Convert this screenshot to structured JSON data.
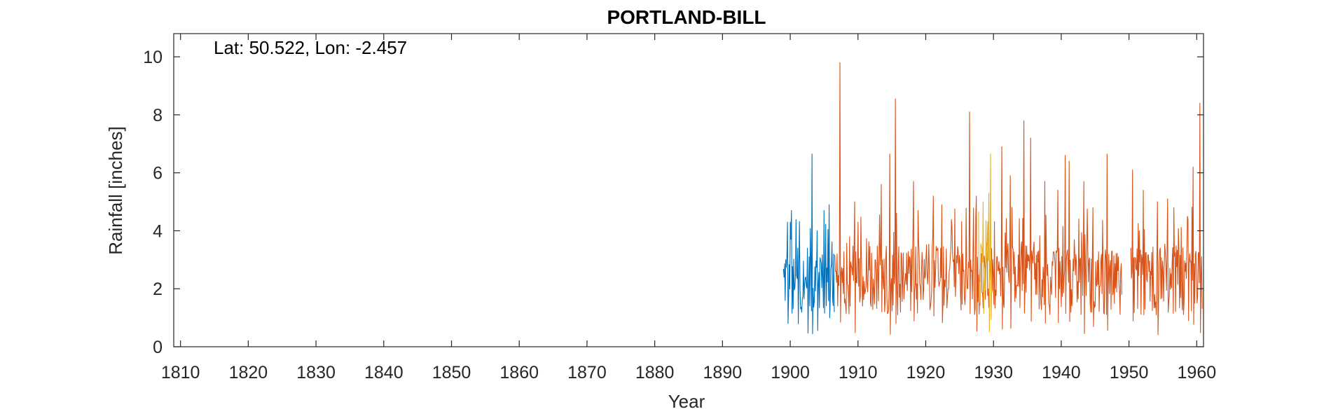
{
  "chart_data": {
    "type": "line",
    "title": "PORTLAND-BILL",
    "xlabel": "Year",
    "ylabel": "Rainfall [inches]",
    "annotation": "Lat: 50.522, Lon: -2.457",
    "xlim": [
      1809,
      1961
    ],
    "ylim": [
      0,
      10.8
    ],
    "xticks": [
      1810,
      1820,
      1830,
      1840,
      1850,
      1860,
      1870,
      1880,
      1890,
      1900,
      1910,
      1920,
      1930,
      1940,
      1950,
      1960
    ],
    "yticks": [
      0,
      2,
      4,
      6,
      8,
      10
    ],
    "grid": false,
    "box": true,
    "series": [
      {
        "color": "#0072BD",
        "x_start": 1899.0,
        "x_end": 1906.5,
        "samples": 90,
        "baseline": 2.1,
        "variability": 1.0,
        "peaks": [
          [
            1899.6,
            4.3
          ],
          [
            1900.2,
            4.7
          ],
          [
            1901.1,
            3.4
          ],
          [
            1902.5,
            3.4
          ],
          [
            1903.2,
            6.65
          ],
          [
            1904.0,
            4.0
          ],
          [
            1905.0,
            4.7
          ],
          [
            1905.7,
            4.9
          ]
        ]
      },
      {
        "color": "#D95319",
        "x_start": 1906.5,
        "x_end": 1960.8,
        "samples": 651,
        "baseline": 2.3,
        "variability": 1.2,
        "peaks": [
          [
            1907.3,
            9.8
          ],
          [
            1909.5,
            5.0
          ],
          [
            1913.4,
            5.6
          ],
          [
            1914.7,
            6.65
          ],
          [
            1915.5,
            8.55
          ],
          [
            1918.2,
            5.7
          ],
          [
            1921.1,
            5.2
          ],
          [
            1922.4,
            4.9
          ],
          [
            1926.5,
            8.1
          ],
          [
            1927.5,
            5.2
          ],
          [
            1931.2,
            6.9
          ],
          [
            1932.5,
            5.9
          ],
          [
            1934.5,
            7.8
          ],
          [
            1935.5,
            7.2
          ],
          [
            1937.6,
            5.7
          ],
          [
            1939.5,
            5.4
          ],
          [
            1940.6,
            6.6
          ],
          [
            1941.2,
            6.4
          ],
          [
            1943.3,
            5.7
          ],
          [
            1944.7,
            4.8
          ],
          [
            1946.8,
            6.65
          ],
          [
            1950.5,
            6.1
          ],
          [
            1952.1,
            5.4
          ],
          [
            1954.2,
            5.0
          ],
          [
            1955.7,
            5.1
          ],
          [
            1958.7,
            4.4
          ],
          [
            1959.5,
            6.2
          ],
          [
            1960.5,
            8.4
          ]
        ],
        "gaps": [
          [
            1949.0,
            1950.2
          ]
        ]
      },
      {
        "color": "#EDB120",
        "x_start": 1927.8,
        "x_end": 1929.9,
        "samples": 26,
        "baseline": 2.5,
        "variability": 1.1,
        "peaks": [
          [
            1928.5,
            5.0
          ],
          [
            1929.3,
            5.3
          ],
          [
            1929.6,
            6.65
          ]
        ]
      }
    ]
  }
}
